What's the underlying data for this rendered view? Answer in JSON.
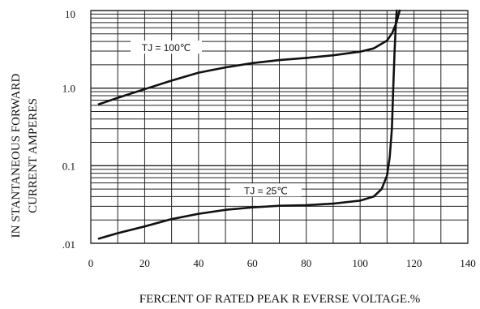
{
  "chart_data": {
    "type": "line",
    "title": "",
    "xlabel": "FERCENT OF RATED PEAK R EVERSE VOLTAGE.%",
    "ylabel_line1": "IN STANTANEOUS FORWARD",
    "ylabel_line2": "CURRENT AMPERES",
    "x_scale": "linear",
    "y_scale": "log",
    "xlim": [
      0,
      140
    ],
    "ylim": [
      0.01,
      10
    ],
    "x_ticks": [
      "0",
      "20",
      "40",
      "60",
      "80",
      "100",
      "120",
      "140"
    ],
    "y_ticks": [
      {
        "value": 10,
        "label": "10"
      },
      {
        "value": 1,
        "label": "1.0"
      },
      {
        "value": 0.1,
        "label": "0.1"
      },
      {
        "value": 0.01,
        "label": ".01"
      }
    ],
    "grid": true,
    "series": [
      {
        "name": "",
        "label": "TJ = 100℃",
        "label_anchor": {
          "x": 28,
          "y": 3.3
        },
        "points": [
          [
            3,
            0.62
          ],
          [
            10,
            0.75
          ],
          [
            20,
            0.97
          ],
          [
            30,
            1.25
          ],
          [
            40,
            1.58
          ],
          [
            50,
            1.85
          ],
          [
            60,
            2.1
          ],
          [
            70,
            2.3
          ],
          [
            80,
            2.45
          ],
          [
            90,
            2.65
          ],
          [
            100,
            2.95
          ],
          [
            105,
            3.25
          ],
          [
            110,
            4.1
          ],
          [
            112,
            5.2
          ],
          [
            113.5,
            7.0
          ],
          [
            114.3,
            9.0
          ],
          [
            114.7,
            10.0
          ]
        ]
      },
      {
        "name": "",
        "label": "TJ = 25℃",
        "label_anchor": {
          "x": 65,
          "y": 0.0475
        },
        "points": [
          [
            3,
            0.0115
          ],
          [
            10,
            0.0135
          ],
          [
            20,
            0.0165
          ],
          [
            30,
            0.0205
          ],
          [
            40,
            0.024
          ],
          [
            50,
            0.027
          ],
          [
            60,
            0.029
          ],
          [
            70,
            0.0305
          ],
          [
            80,
            0.031
          ],
          [
            90,
            0.0325
          ],
          [
            100,
            0.0355
          ],
          [
            105,
            0.04
          ],
          [
            108,
            0.05
          ],
          [
            110,
            0.075
          ],
          [
            111,
            0.13
          ],
          [
            111.8,
            0.3
          ],
          [
            112.3,
            1.0
          ],
          [
            112.8,
            3.0
          ],
          [
            113.3,
            7.0
          ],
          [
            113.6,
            10.0
          ]
        ]
      }
    ]
  }
}
